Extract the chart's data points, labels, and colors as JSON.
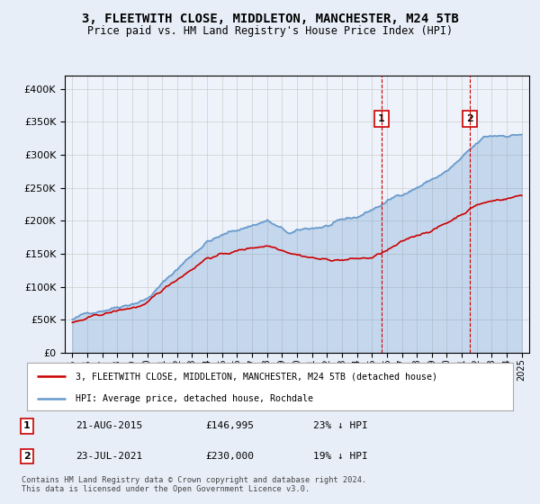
{
  "title": "3, FLEETWITH CLOSE, MIDDLETON, MANCHESTER, M24 5TB",
  "subtitle": "Price paid vs. HM Land Registry's House Price Index (HPI)",
  "legend_line1": "3, FLEETWITH CLOSE, MIDDLETON, MANCHESTER, M24 5TB (detached house)",
  "legend_line2": "HPI: Average price, detached house, Rochdale",
  "annotation1": {
    "num": "1",
    "date": "21-AUG-2015",
    "price": "£146,995",
    "pct": "23% ↓ HPI",
    "year": 2015.64
  },
  "annotation2": {
    "num": "2",
    "date": "23-JUL-2021",
    "price": "£230,000",
    "pct": "19% ↓ HPI",
    "year": 2021.55
  },
  "footer": "Contains HM Land Registry data © Crown copyright and database right 2024.\nThis data is licensed under the Open Government Licence v3.0.",
  "hpi_color": "#6699cc",
  "price_color": "#cc0000",
  "annotation_color": "#cc0000",
  "vline_color": "#cc0000",
  "background_color": "#e8eef8",
  "plot_bg_color": "#eef2fa",
  "ylim": [
    0,
    420000
  ],
  "xlim_start": 1994.5,
  "xlim_end": 2025.5
}
